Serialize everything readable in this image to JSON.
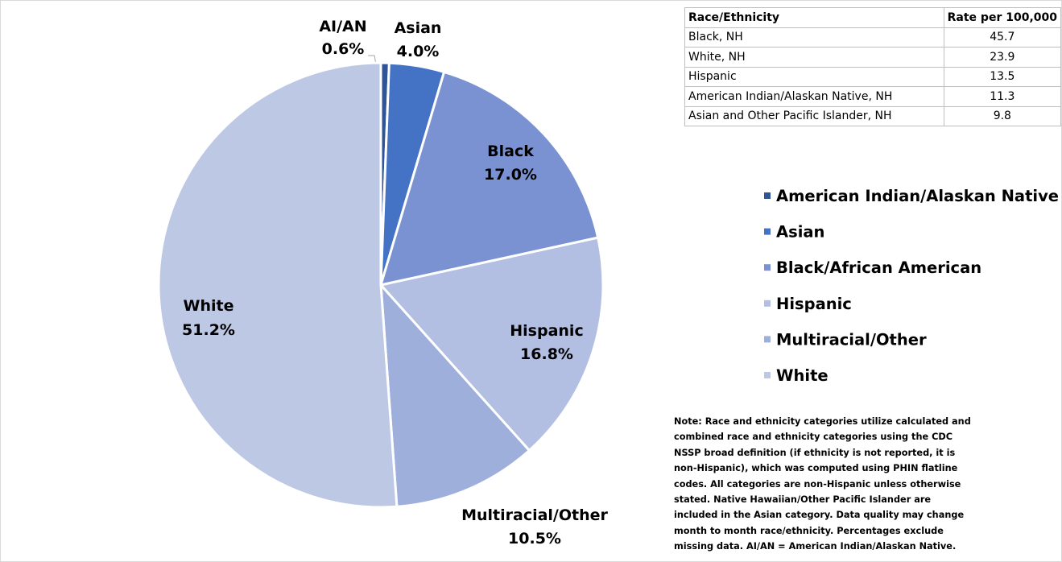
{
  "chart_data": {
    "type": "pie",
    "categories": [
      "American Indian/Alaskan Native",
      "Asian",
      "Black/African American",
      "Hispanic",
      "Multiracial/Other",
      "White"
    ],
    "labels": [
      "AI/AN",
      "Asian",
      "Black",
      "Hispanic",
      "Multiracial/Other",
      "White"
    ],
    "values": [
      0.6,
      4.0,
      17.0,
      16.8,
      10.5,
      51.2
    ],
    "value_labels": [
      "0.6%",
      "4.0%",
      "17.0%",
      "16.8%",
      "10.5%",
      "51.2%"
    ],
    "colors": [
      "#2f5597",
      "#4472c4",
      "#7a92d1",
      "#b2bfe2",
      "#9eafdb",
      "#bdc8e4"
    ],
    "legend": "right"
  },
  "table": {
    "header": [
      "Race/Ethnicity",
      "Rate per 100,000"
    ],
    "rows": [
      [
        "Black, NH",
        45.7
      ],
      [
        "White, NH",
        23.9
      ],
      [
        "Hispanic",
        13.5
      ],
      [
        "American Indian/Alaskan Native, NH",
        11.3
      ],
      [
        "Asian and Other Pacific Islander, NH",
        9.8
      ]
    ]
  },
  "note": "Note: Race and ethnicity categories utilize calculated and combined race and ethnicity categories using the CDC NSSP broad definition (if ethnicity is not reported, it is non-Hispanic), which was computed using PHIN flatline codes. All categories are non-Hispanic unless otherwise stated. Native Hawaiian/Other Pacific Islander are included in the Asian category. Data quality may change month to month race/ethnicity. Percentages exclude missing data. AI/AN = American Indian/Alaskan Native."
}
